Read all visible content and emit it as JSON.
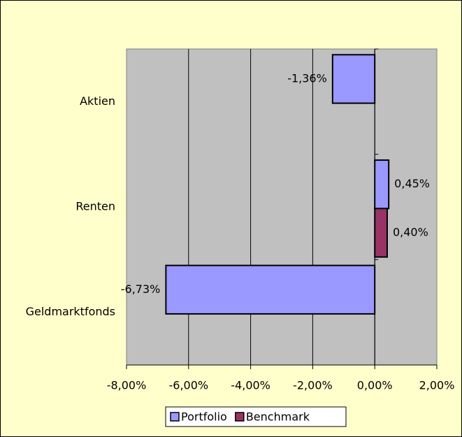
{
  "chart_data": {
    "type": "hbar",
    "categories": [
      "Aktien",
      "Renten",
      "Geldmarktfonds"
    ],
    "series": [
      {
        "name": "Portfolio",
        "color": "#9999ff",
        "values": [
          -1.36,
          0.45,
          -6.73
        ],
        "value_labels": [
          "-1,36%",
          "0,45%",
          "-6,73%"
        ]
      },
      {
        "name": "Benchmark",
        "color": "#993366",
        "values": [
          null,
          0.4,
          null
        ],
        "value_labels": [
          null,
          "0,40%",
          null
        ]
      }
    ],
    "xlim": [
      -8,
      2
    ],
    "xticks": [
      {
        "value": -8,
        "label": "-8,00%"
      },
      {
        "value": -6,
        "label": "-6,00%"
      },
      {
        "value": -4,
        "label": "-4,00%"
      },
      {
        "value": -2,
        "label": "-2,00%"
      },
      {
        "value": 0,
        "label": "0,00%"
      },
      {
        "value": 2,
        "label": "2,00%"
      }
    ],
    "grid": true,
    "legend": "bottom"
  }
}
